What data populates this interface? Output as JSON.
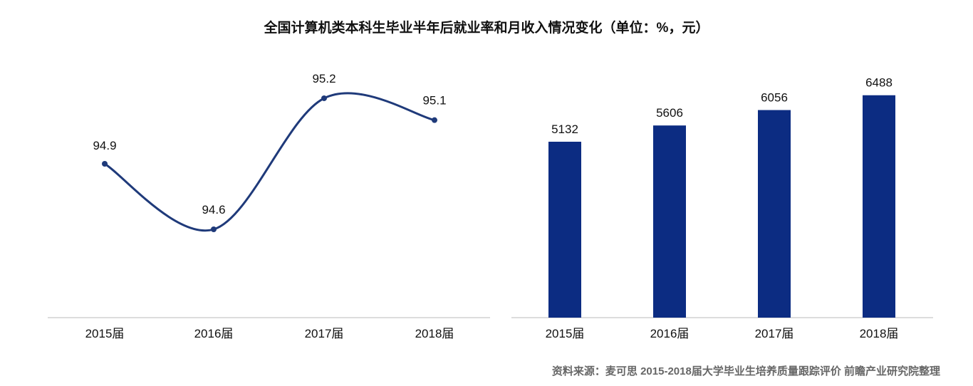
{
  "title": "全国计算机类本科生毕业半年后就业率和月收入情况变化（单位：%，元）",
  "source": "资料来源：麦可思 2015-2018届大学毕业生培养质量跟踪评价 前瞻产业研究院整理",
  "chart_data": [
    {
      "type": "line",
      "categories": [
        "2015届",
        "2016届",
        "2017届",
        "2018届"
      ],
      "values": [
        94.9,
        94.6,
        95.2,
        95.1
      ],
      "data_labels": [
        "94.9",
        "94.6",
        "95.2",
        "95.1"
      ],
      "smooth": true,
      "color": "#1f3a7a",
      "grid": false
    },
    {
      "type": "bar",
      "categories": [
        "2015届",
        "2016届",
        "2017届",
        "2018届"
      ],
      "values": [
        5132,
        5606,
        6056,
        6488
      ],
      "data_labels": [
        "5132",
        "5606",
        "6056",
        "6488"
      ],
      "color": "#0c2c82",
      "grid": false
    }
  ]
}
